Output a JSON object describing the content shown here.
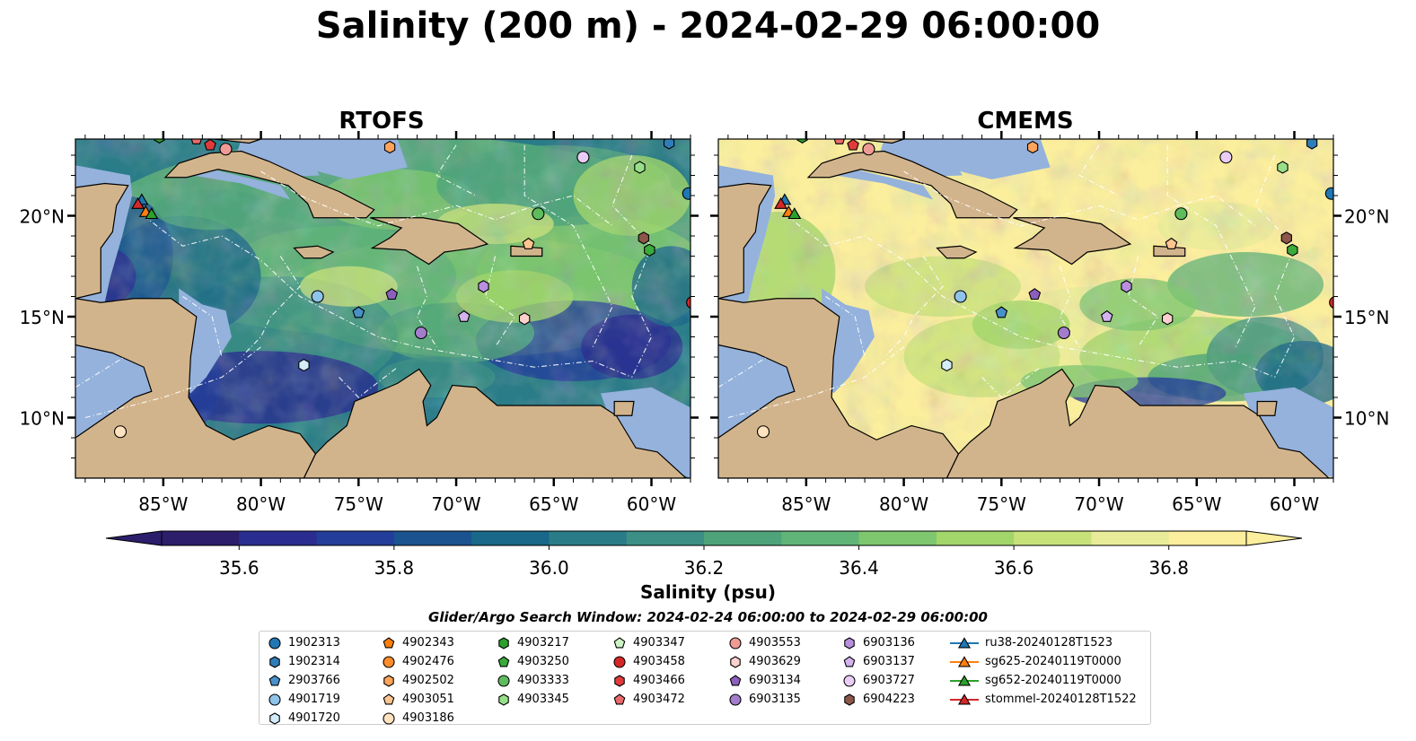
{
  "title": "Salinity (200 m) - 2024-02-29 06:00:00",
  "panels": [
    {
      "title": "RTOFS"
    },
    {
      "title": "CMEMS"
    }
  ],
  "map": {
    "lon_ticks": [
      "85°W",
      "80°W",
      "75°W",
      "70°W",
      "65°W",
      "60°W"
    ],
    "lat_ticks": [
      "20°N",
      "15°N",
      "10°N"
    ],
    "land_color": "#d2b48c",
    "shelf_color": "#94b2dc"
  },
  "colorbar": {
    "label": "Salinity (psu)",
    "ticks": [
      "35.6",
      "35.8",
      "36.0",
      "36.2",
      "36.4",
      "36.6",
      "36.8"
    ],
    "colors": [
      "#2c1e6b",
      "#2a2d8f",
      "#233e9a",
      "#1b5390",
      "#196789",
      "#2a7c88",
      "#3c8f84",
      "#4ea37b",
      "#61b478",
      "#7ec76e",
      "#a2d66a",
      "#c8e27a",
      "#e8ec98",
      "#fbee9c"
    ],
    "range": [
      35.5,
      36.95
    ]
  },
  "legend": {
    "title": "Glider/Argo Search Window: 2024-02-24 06:00:00 to 2024-02-29 06:00:00",
    "columns": [
      [
        {
          "label": "1902313",
          "marker": "circle",
          "color": "#1f77b4"
        },
        {
          "label": "1902314",
          "marker": "hexagon",
          "color": "#2f7db8"
        },
        {
          "label": "2903766",
          "marker": "pentagon",
          "color": "#4a90c9"
        },
        {
          "label": "4901719",
          "marker": "circle",
          "color": "#8ec3ea"
        },
        {
          "label": "4901720",
          "marker": "hexagon",
          "color": "#d2ecfa"
        }
      ],
      [
        {
          "label": "4902343",
          "marker": "pentagon",
          "color": "#ff7f0e"
        },
        {
          "label": "4902476",
          "marker": "circle",
          "color": "#ff8c2a"
        },
        {
          "label": "4902502",
          "marker": "hexagon",
          "color": "#ffa45a"
        },
        {
          "label": "4903051",
          "marker": "pentagon",
          "color": "#ffc590"
        },
        {
          "label": "4903186",
          "marker": "circle",
          "color": "#ffe2bf"
        }
      ],
      [
        {
          "label": "4903217",
          "marker": "hexagon",
          "color": "#2ca02c"
        },
        {
          "label": "4903250",
          "marker": "pentagon",
          "color": "#3aaa3a"
        },
        {
          "label": "4903333",
          "marker": "circle",
          "color": "#5dbd5d"
        },
        {
          "label": "4903345",
          "marker": "hexagon",
          "color": "#98df8a"
        }
      ],
      [
        {
          "label": "4903347",
          "marker": "pentagon",
          "color": "#cdf5c4"
        },
        {
          "label": "4903458",
          "marker": "circle",
          "color": "#d62728"
        },
        {
          "label": "4903466",
          "marker": "hexagon",
          "color": "#e03b3b"
        },
        {
          "label": "4903472",
          "marker": "pentagon",
          "color": "#ea6a6a"
        }
      ],
      [
        {
          "label": "4903553",
          "marker": "circle",
          "color": "#f09a96"
        },
        {
          "label": "4903629",
          "marker": "hexagon",
          "color": "#fcd0cd"
        },
        {
          "label": "6903134",
          "marker": "pentagon",
          "color": "#8c5fbd"
        },
        {
          "label": "6903135",
          "marker": "circle",
          "color": "#a47ccc"
        }
      ],
      [
        {
          "label": "6903136",
          "marker": "hexagon",
          "color": "#b98fe0"
        },
        {
          "label": "6903137",
          "marker": "pentagon",
          "color": "#d3b2ee"
        },
        {
          "label": "6903727",
          "marker": "circle",
          "color": "#e9cdf7"
        },
        {
          "label": "6904223",
          "marker": "hexagon",
          "color": "#8c564b"
        }
      ],
      [
        {
          "label": "ru38-20240128T1523",
          "marker": "triangle-line",
          "color": "#1f77b4"
        },
        {
          "label": "sg625-20240119T0000",
          "marker": "triangle-line",
          "color": "#ff7f0e"
        },
        {
          "label": "sg652-20240119T0000",
          "marker": "triangle-line",
          "color": "#2ca02c"
        },
        {
          "label": "stommel-20240128T1522",
          "marker": "triangle-line",
          "color": "#d62728"
        }
      ]
    ]
  },
  "floats": [
    {
      "lon": -85.2,
      "lat": 23.9,
      "marker": "hexagon",
      "color": "#2ca02c"
    },
    {
      "lon": -83.3,
      "lat": 23.8,
      "marker": "pentagon",
      "color": "#ea6a6a"
    },
    {
      "lon": -82.6,
      "lat": 23.5,
      "marker": "pentagon",
      "color": "#e03b3b"
    },
    {
      "lon": -81.8,
      "lat": 23.3,
      "marker": "circle",
      "color": "#f09a96"
    },
    {
      "lon": -73.4,
      "lat": 23.4,
      "marker": "hexagon",
      "color": "#ffa45a"
    },
    {
      "lon": -63.5,
      "lat": 22.9,
      "marker": "circle",
      "color": "#e9cdf7"
    },
    {
      "lon": -60.6,
      "lat": 22.4,
      "marker": "hexagon",
      "color": "#98df8a"
    },
    {
      "lon": -59.1,
      "lat": 23.6,
      "marker": "hexagon",
      "color": "#2f7db8"
    },
    {
      "lon": -58.1,
      "lat": 21.1,
      "marker": "circle",
      "color": "#1f77b4"
    },
    {
      "lon": -65.8,
      "lat": 20.1,
      "marker": "circle",
      "color": "#5dbd5d"
    },
    {
      "lon": -66.3,
      "lat": 18.6,
      "marker": "pentagon",
      "color": "#ffc590"
    },
    {
      "lon": -60.4,
      "lat": 18.9,
      "marker": "hexagon",
      "color": "#8c564b"
    },
    {
      "lon": -60.1,
      "lat": 18.3,
      "marker": "hexagon",
      "color": "#3aaa3a"
    },
    {
      "lon": -77.1,
      "lat": 16.0,
      "marker": "circle",
      "color": "#8ec3ea"
    },
    {
      "lon": -73.3,
      "lat": 16.1,
      "marker": "pentagon",
      "color": "#8c5fbd"
    },
    {
      "lon": -68.6,
      "lat": 16.5,
      "marker": "hexagon",
      "color": "#b98fe0"
    },
    {
      "lon": -75.0,
      "lat": 15.2,
      "marker": "pentagon",
      "color": "#4a90c9"
    },
    {
      "lon": -69.6,
      "lat": 15.0,
      "marker": "pentagon",
      "color": "#d3b2ee"
    },
    {
      "lon": -66.5,
      "lat": 14.9,
      "marker": "hexagon",
      "color": "#fcd0cd"
    },
    {
      "lon": -71.8,
      "lat": 14.2,
      "marker": "circle",
      "color": "#a47ccc"
    },
    {
      "lon": -77.8,
      "lat": 12.6,
      "marker": "hexagon",
      "color": "#d2ecfa"
    },
    {
      "lon": -57.9,
      "lat": 15.7,
      "marker": "circle",
      "color": "#d62728"
    },
    {
      "lon": -87.2,
      "lat": 9.3,
      "marker": "circle",
      "color": "#ffe2bf"
    }
  ],
  "gliders": [
    {
      "lon": -86.1,
      "lat": 20.8,
      "color": "#1f77b4"
    },
    {
      "lon": -86.3,
      "lat": 20.6,
      "color": "#d62728"
    },
    {
      "lon": -85.9,
      "lat": 20.2,
      "color": "#ff7f0e"
    },
    {
      "lon": -85.6,
      "lat": 20.1,
      "color": "#2ca02c"
    }
  ]
}
